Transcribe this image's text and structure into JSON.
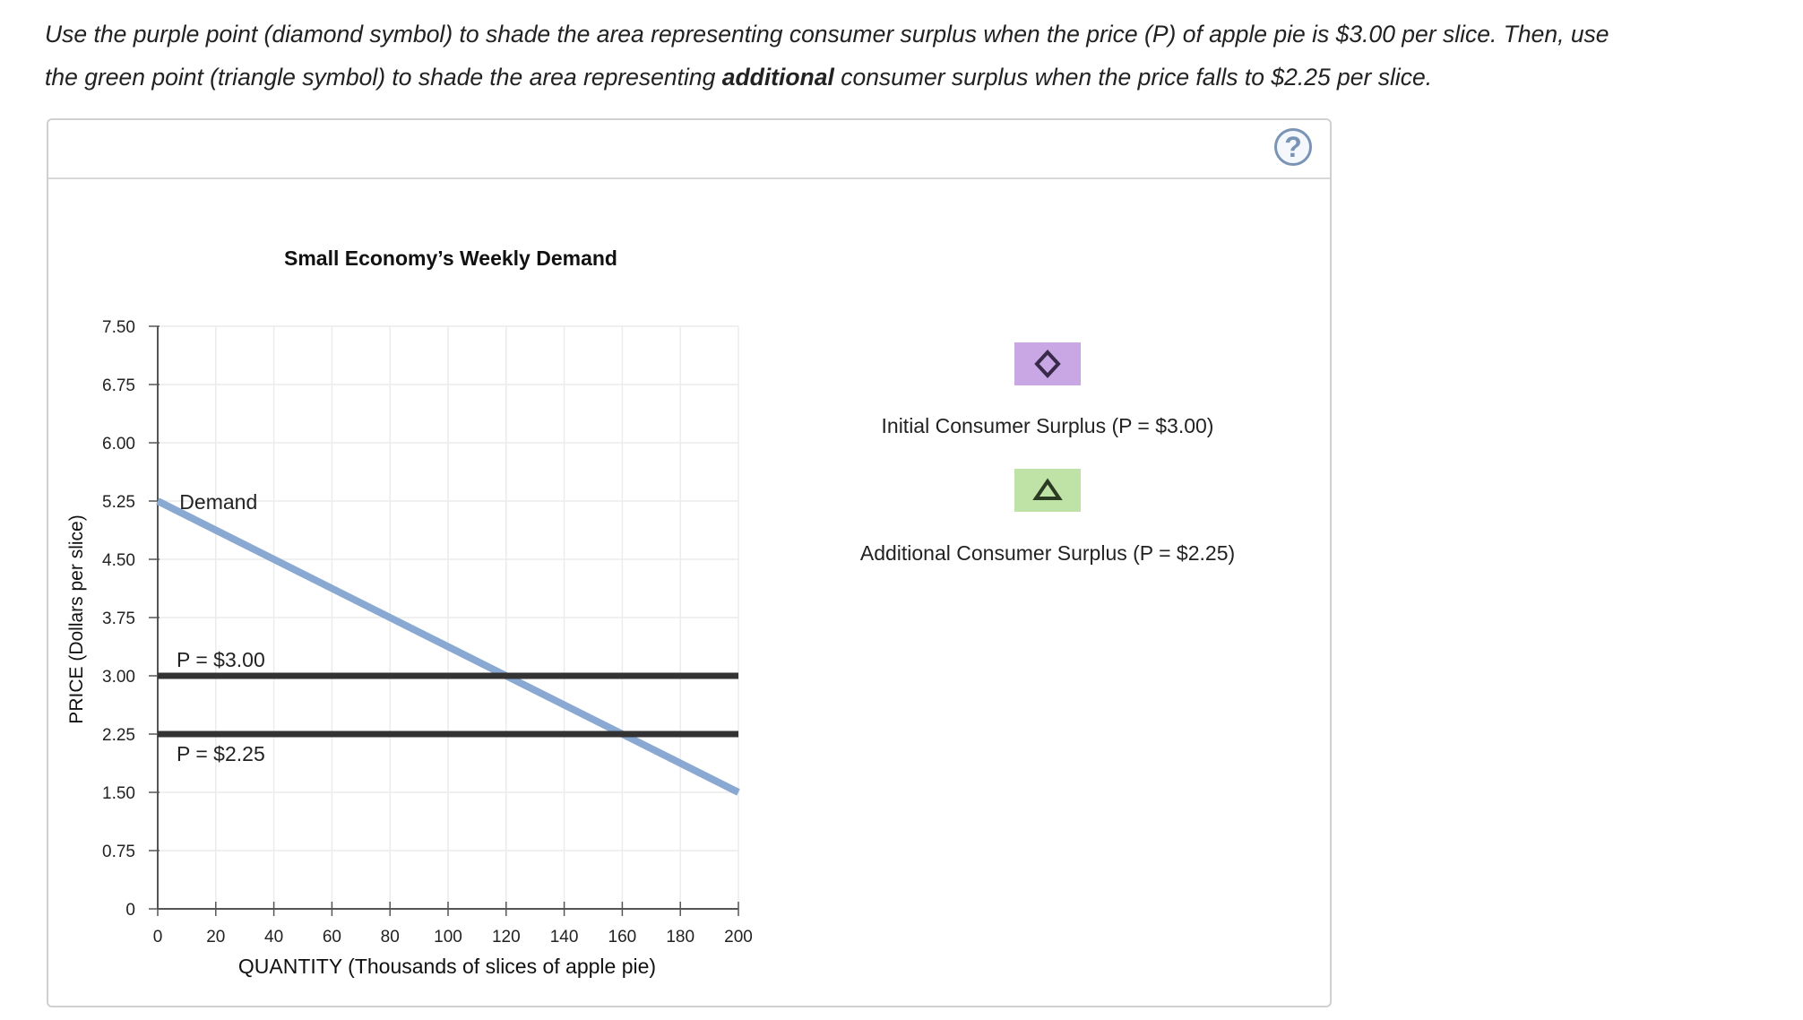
{
  "instructions": {
    "line1": "Use the purple point (diamond symbol) to shade the area representing consumer surplus when the price (P) of apple pie is $3.00 per slice. Then, use",
    "line2_before": "the green point (triangle symbol) to shade the area representing ",
    "line2_bold": "additional",
    "line2_after": " consumer surplus when the price falls to $2.25 per slice."
  },
  "help": {
    "label": "?"
  },
  "tools": [
    {
      "label": "Initial Consumer Surplus (P = $3.00)",
      "icon": "diamond-icon",
      "color": "#c9a6e4",
      "stroke": "#3a2a4a"
    },
    {
      "label": "Additional Consumer Surplus (P = $2.25)",
      "icon": "triangle-icon",
      "color": "#bfe3a6",
      "stroke": "#2b3a22"
    }
  ],
  "chart_data": {
    "type": "line",
    "title": "Small Economy’s Weekly Demand",
    "xlabel": "QUANTITY (Thousands of slices of apple pie)",
    "ylabel": "PRICE (Dollars per slice)",
    "xlim": [
      0,
      200
    ],
    "ylim": [
      0,
      7.5
    ],
    "x_ticks": [
      0,
      20,
      40,
      60,
      80,
      100,
      120,
      140,
      160,
      180,
      200
    ],
    "y_ticks": [
      0,
      0.75,
      1.5,
      2.25,
      3.0,
      3.75,
      4.5,
      5.25,
      6.0,
      6.75,
      7.5
    ],
    "y_tick_labels": [
      "0",
      "0.75",
      "1.50",
      "2.25",
      "3.00",
      "3.75",
      "4.50",
      "5.25",
      "6.00",
      "6.75",
      "7.50"
    ],
    "x_tick_labels": [
      "0",
      "20",
      "40",
      "60",
      "80",
      "100",
      "120",
      "140",
      "160",
      "180",
      "200"
    ],
    "grid": true,
    "series": [
      {
        "name": "Demand",
        "color": "#8aa9d2",
        "x": [
          0,
          200
        ],
        "y": [
          5.25,
          1.5
        ]
      },
      {
        "name": "P = $3.00",
        "color": "#333333",
        "x": [
          0,
          200
        ],
        "y": [
          3.0,
          3.0
        ]
      },
      {
        "name": "P = $2.25",
        "color": "#333333",
        "x": [
          0,
          200
        ],
        "y": [
          2.25,
          2.25
        ]
      }
    ]
  }
}
